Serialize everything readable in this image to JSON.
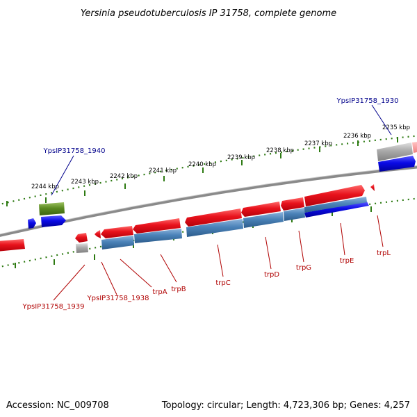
{
  "title": "Yersinia pseudotuberculosis IP 31758, complete genome",
  "footer": {
    "accession": "Accession: NC_009708",
    "summary": "Topology: circular; Length: 4,723,306 bp; Genes: 4,257"
  },
  "ticks": [
    "2235 kbp",
    "2236 kbp",
    "2237 kbp",
    "2238 kbp",
    "2239 kbp",
    "2240 kbp",
    "2241 kbp",
    "2242 kbp",
    "2243 kbp",
    "2244 kbp"
  ],
  "gene_labels": {
    "top": [
      "YpsIP31758_1930",
      "YpsIP31758_1940"
    ],
    "bottom": [
      "YpsIP31758_1939",
      "YpsIP31758_1938",
      "trpA",
      "trpB",
      "trpC",
      "trpD",
      "trpG",
      "trpE",
      "trpL"
    ]
  },
  "colors": {
    "red_gene": "#e8121c",
    "blue_gene": "#0a0ae6",
    "steel_blue": "#4a82b8",
    "green_gene": "#5a8a20",
    "gray_gene": "#a9a9a9",
    "tick_green": "#2d7a12",
    "label_blue": "#00008b",
    "label_red": "#b00000"
  }
}
